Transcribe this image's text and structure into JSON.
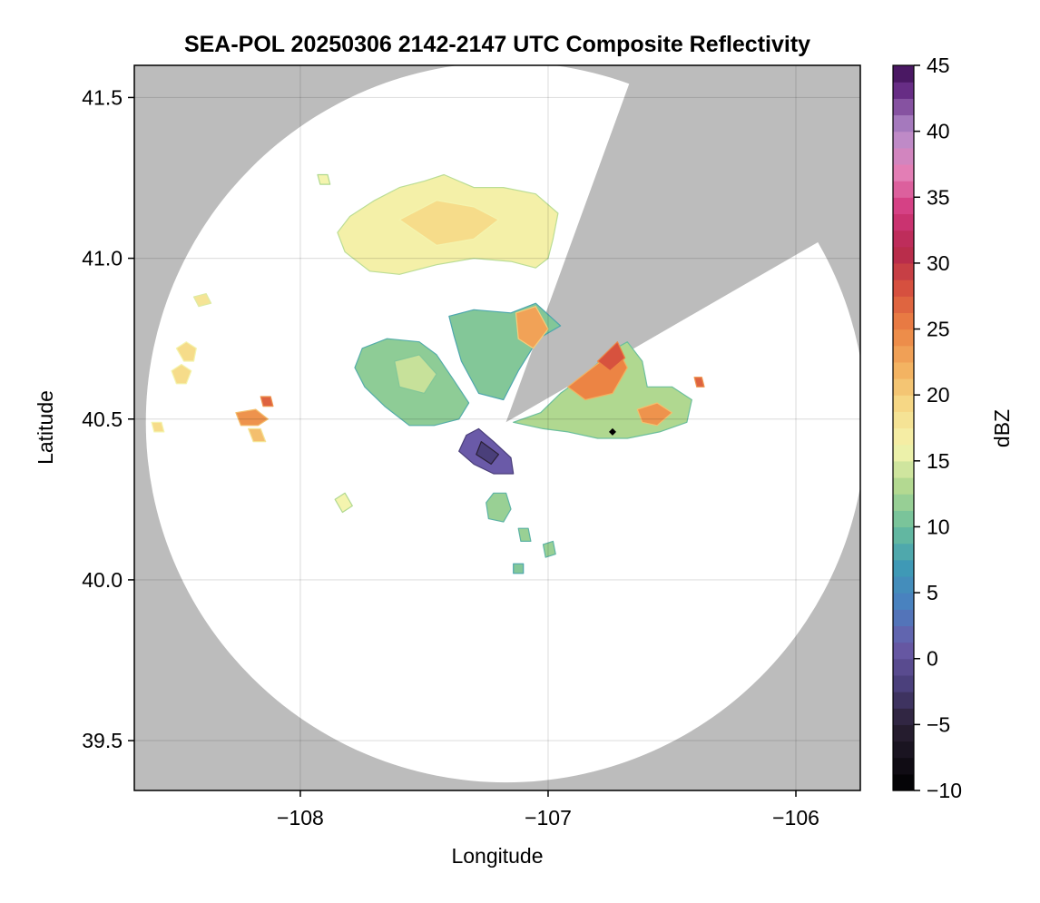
{
  "chart_data": {
    "type": "heatmap",
    "title": "SEA-POL 20250306 2142-2147 UTC Composite Reflectivity",
    "xlabel": "Longitude",
    "ylabel": "Latitude",
    "xlim": [
      -108.67,
      -105.74
    ],
    "ylim": [
      39.345,
      41.6
    ],
    "x_ticks": [
      {
        "value": -108,
        "label": "−108"
      },
      {
        "value": -107,
        "label": "−107"
      },
      {
        "value": -106,
        "label": "−106"
      }
    ],
    "y_ticks": [
      {
        "value": 39.5,
        "label": "39.5"
      },
      {
        "value": 40.0,
        "label": "40.0"
      },
      {
        "value": 40.5,
        "label": "40.5"
      },
      {
        "value": 41.0,
        "label": "41.0"
      },
      {
        "value": 41.5,
        "label": "41.5"
      }
    ],
    "grid": true,
    "background_color": "#bcbcbc",
    "radar_site": {
      "lon": -107.17,
      "lat": 40.49
    },
    "coverage_radius_deg_lat": 1.12,
    "blocked_sectors_deg": [
      [
        20,
        60
      ]
    ],
    "colorbar": {
      "label": "dBZ",
      "min": -10,
      "max": 45,
      "ticks": [
        {
          "value": -10,
          "label": "−10"
        },
        {
          "value": -5,
          "label": "−5"
        },
        {
          "value": 0,
          "label": "0"
        },
        {
          "value": 5,
          "label": "5"
        },
        {
          "value": 10,
          "label": "10"
        },
        {
          "value": 15,
          "label": "15"
        },
        {
          "value": 20,
          "label": "20"
        },
        {
          "value": 25,
          "label": "25"
        },
        {
          "value": 30,
          "label": "30"
        },
        {
          "value": 35,
          "label": "35"
        },
        {
          "value": 40,
          "label": "40"
        },
        {
          "value": 45,
          "label": "45"
        }
      ],
      "colormap_stops": [
        {
          "v": -10,
          "c": "#000000"
        },
        {
          "v": -5,
          "c": "#2a2035"
        },
        {
          "v": -2,
          "c": "#4a3f7a"
        },
        {
          "v": 1,
          "c": "#6a5aa8"
        },
        {
          "v": 4,
          "c": "#4a7ec0"
        },
        {
          "v": 7,
          "c": "#3e9ab6"
        },
        {
          "v": 10,
          "c": "#6cbf9c"
        },
        {
          "v": 13,
          "c": "#b0d890"
        },
        {
          "v": 16,
          "c": "#f4f4ae"
        },
        {
          "v": 19,
          "c": "#f6dc8a"
        },
        {
          "v": 22,
          "c": "#f3b160"
        },
        {
          "v": 25,
          "c": "#ec8444"
        },
        {
          "v": 28,
          "c": "#d7523e"
        },
        {
          "v": 31,
          "c": "#b5284d"
        },
        {
          "v": 34,
          "c": "#d3387e"
        },
        {
          "v": 37,
          "c": "#e481b7"
        },
        {
          "v": 40,
          "c": "#b58ccb"
        },
        {
          "v": 43,
          "c": "#6a2f88"
        },
        {
          "v": 45,
          "c": "#3b0d52"
        }
      ]
    },
    "echo_regions": [
      {
        "name": "northern band",
        "points": [
          [
            -107.82,
            41.02
          ],
          [
            -107.85,
            41.08
          ],
          [
            -107.8,
            41.13
          ],
          [
            -107.7,
            41.18
          ],
          [
            -107.6,
            41.22
          ],
          [
            -107.5,
            41.24
          ],
          [
            -107.42,
            41.26
          ],
          [
            -107.3,
            41.22
          ],
          [
            -107.18,
            41.22
          ],
          [
            -107.05,
            41.2
          ],
          [
            -106.96,
            41.14
          ],
          [
            -106.98,
            41.06
          ],
          [
            -107.0,
            41.0
          ],
          [
            -107.05,
            40.97
          ],
          [
            -107.15,
            40.99
          ],
          [
            -107.3,
            41.0
          ],
          [
            -107.45,
            40.98
          ],
          [
            -107.6,
            40.95
          ],
          [
            -107.72,
            40.96
          ]
        ],
        "dbz": 16.5
      },
      {
        "name": "northern band core",
        "points": [
          [
            -107.6,
            41.12
          ],
          [
            -107.45,
            41.18
          ],
          [
            -107.3,
            41.16
          ],
          [
            -107.2,
            41.12
          ],
          [
            -107.3,
            41.06
          ],
          [
            -107.45,
            41.04
          ]
        ],
        "dbz": 19
      },
      {
        "name": "west central",
        "points": [
          [
            -107.78,
            40.66
          ],
          [
            -107.75,
            40.72
          ],
          [
            -107.65,
            40.75
          ],
          [
            -107.52,
            40.74
          ],
          [
            -107.45,
            40.7
          ],
          [
            -107.38,
            40.62
          ],
          [
            -107.32,
            40.55
          ],
          [
            -107.36,
            40.5
          ],
          [
            -107.46,
            40.48
          ],
          [
            -107.56,
            40.48
          ],
          [
            -107.66,
            40.54
          ],
          [
            -107.74,
            40.6
          ]
        ],
        "dbz": 11.5
      },
      {
        "name": "west central core",
        "points": [
          [
            -107.62,
            40.68
          ],
          [
            -107.52,
            40.7
          ],
          [
            -107.45,
            40.64
          ],
          [
            -107.5,
            40.58
          ],
          [
            -107.6,
            40.6
          ]
        ],
        "dbz": 14
      },
      {
        "name": "north central",
        "points": [
          [
            -107.4,
            40.82
          ],
          [
            -107.3,
            40.84
          ],
          [
            -107.15,
            40.83
          ],
          [
            -107.05,
            40.86
          ],
          [
            -106.95,
            40.79
          ],
          [
            -107.04,
            40.75
          ],
          [
            -107.12,
            40.65
          ],
          [
            -107.18,
            40.56
          ],
          [
            -107.28,
            40.58
          ],
          [
            -107.35,
            40.68
          ],
          [
            -107.38,
            40.76
          ]
        ],
        "dbz": 11
      },
      {
        "name": "north central core",
        "points": [
          [
            -107.13,
            40.83
          ],
          [
            -107.05,
            40.85
          ],
          [
            -107.0,
            40.78
          ],
          [
            -107.06,
            40.72
          ],
          [
            -107.12,
            40.75
          ]
        ],
        "dbz": 23
      },
      {
        "name": "southern arm",
        "points": [
          [
            -107.28,
            40.47
          ],
          [
            -107.22,
            40.43
          ],
          [
            -107.15,
            40.38
          ],
          [
            -107.14,
            40.33
          ],
          [
            -107.22,
            40.33
          ],
          [
            -107.3,
            40.36
          ],
          [
            -107.36,
            40.4
          ],
          [
            -107.33,
            40.45
          ]
        ],
        "dbz": 1
      },
      {
        "name": "southern arm core",
        "points": [
          [
            -107.27,
            40.43
          ],
          [
            -107.2,
            40.39
          ],
          [
            -107.23,
            40.36
          ],
          [
            -107.29,
            40.39
          ]
        ],
        "dbz": -2
      },
      {
        "name": "east cell",
        "points": [
          [
            -107.14,
            40.49
          ],
          [
            -107.03,
            40.52
          ],
          [
            -106.95,
            40.58
          ],
          [
            -106.86,
            40.63
          ],
          [
            -106.75,
            40.71
          ],
          [
            -106.68,
            40.74
          ],
          [
            -106.62,
            40.68
          ],
          [
            -106.6,
            40.6
          ],
          [
            -106.5,
            40.6
          ],
          [
            -106.42,
            40.56
          ],
          [
            -106.44,
            40.49
          ],
          [
            -106.55,
            40.46
          ],
          [
            -106.68,
            40.44
          ],
          [
            -106.8,
            40.44
          ],
          [
            -106.92,
            40.46
          ],
          [
            -107.02,
            40.47
          ]
        ],
        "dbz": 13
      },
      {
        "name": "east cell core",
        "points": [
          [
            -106.92,
            40.6
          ],
          [
            -106.82,
            40.66
          ],
          [
            -106.72,
            40.72
          ],
          [
            -106.68,
            40.66
          ],
          [
            -106.74,
            40.58
          ],
          [
            -106.85,
            40.56
          ]
        ],
        "dbz": 25
      },
      {
        "name": "east cell inner",
        "points": [
          [
            -106.8,
            40.68
          ],
          [
            -106.72,
            40.74
          ],
          [
            -106.69,
            40.69
          ],
          [
            -106.75,
            40.65
          ]
        ],
        "dbz": 28
      },
      {
        "name": "east cell south core",
        "points": [
          [
            -106.64,
            40.53
          ],
          [
            -106.56,
            40.55
          ],
          [
            -106.5,
            40.52
          ],
          [
            -106.56,
            40.48
          ],
          [
            -106.62,
            40.49
          ]
        ],
        "dbz": 24
      },
      {
        "name": "south cell",
        "points": [
          [
            -107.25,
            40.24
          ],
          [
            -107.22,
            40.27
          ],
          [
            -107.17,
            40.27
          ],
          [
            -107.15,
            40.22
          ],
          [
            -107.18,
            40.18
          ],
          [
            -107.24,
            40.19
          ]
        ],
        "dbz": 12
      },
      {
        "name": "small west 1",
        "points": [
          [
            -108.5,
            40.72
          ],
          [
            -108.46,
            40.74
          ],
          [
            -108.42,
            40.72
          ],
          [
            -108.43,
            40.68
          ],
          [
            -108.47,
            40.68
          ]
        ],
        "dbz": 19
      },
      {
        "name": "small west 2",
        "points": [
          [
            -108.52,
            40.65
          ],
          [
            -108.48,
            40.67
          ],
          [
            -108.44,
            40.65
          ],
          [
            -108.46,
            40.61
          ],
          [
            -108.5,
            40.61
          ]
        ],
        "dbz": 19
      },
      {
        "name": "small west 3",
        "points": [
          [
            -108.26,
            40.52
          ],
          [
            -108.18,
            40.53
          ],
          [
            -108.13,
            40.5
          ],
          [
            -108.17,
            40.48
          ],
          [
            -108.24,
            40.48
          ]
        ],
        "dbz": 24
      },
      {
        "name": "small west 4",
        "points": [
          [
            -108.21,
            40.47
          ],
          [
            -108.16,
            40.47
          ],
          [
            -108.14,
            40.43
          ],
          [
            -108.19,
            40.43
          ]
        ],
        "dbz": 21
      },
      {
        "name": "small west 5",
        "points": [
          [
            -108.43,
            40.88
          ],
          [
            -108.38,
            40.89
          ],
          [
            -108.36,
            40.86
          ],
          [
            -108.41,
            40.85
          ]
        ],
        "dbz": 18
      },
      {
        "name": "small west 6",
        "points": [
          [
            -108.6,
            40.49
          ],
          [
            -108.56,
            40.49
          ],
          [
            -108.55,
            40.46
          ],
          [
            -108.59,
            40.46
          ]
        ],
        "dbz": 19
      },
      {
        "name": "small west 7",
        "points": [
          [
            -108.16,
            40.57
          ],
          [
            -108.12,
            40.57
          ],
          [
            -108.11,
            40.54
          ],
          [
            -108.15,
            40.54
          ]
        ],
        "dbz": 27
      },
      {
        "name": "small west 8",
        "points": [
          [
            -107.86,
            40.25
          ],
          [
            -107.82,
            40.27
          ],
          [
            -107.79,
            40.23
          ],
          [
            -107.83,
            40.21
          ]
        ],
        "dbz": 16
      },
      {
        "name": "small far east",
        "points": [
          [
            -106.41,
            40.63
          ],
          [
            -106.38,
            40.63
          ],
          [
            -106.37,
            40.6
          ],
          [
            -106.4,
            40.6
          ]
        ],
        "dbz": 27
      },
      {
        "name": "small north",
        "points": [
          [
            -107.93,
            41.26
          ],
          [
            -107.89,
            41.26
          ],
          [
            -107.88,
            41.23
          ],
          [
            -107.92,
            41.23
          ]
        ],
        "dbz": 16
      },
      {
        "name": "small south 1",
        "points": [
          [
            -107.12,
            40.16
          ],
          [
            -107.08,
            40.16
          ],
          [
            -107.07,
            40.12
          ],
          [
            -107.11,
            40.12
          ]
        ],
        "dbz": 12
      },
      {
        "name": "small south 2",
        "points": [
          [
            -107.02,
            40.11
          ],
          [
            -106.98,
            40.12
          ],
          [
            -106.97,
            40.08
          ],
          [
            -107.01,
            40.07
          ]
        ],
        "dbz": 12
      },
      {
        "name": "small south 3",
        "points": [
          [
            -107.14,
            40.05
          ],
          [
            -107.1,
            40.05
          ],
          [
            -107.1,
            40.02
          ],
          [
            -107.14,
            40.02
          ]
        ],
        "dbz": 11
      }
    ],
    "markers": [
      {
        "lon": -106.74,
        "lat": 40.46,
        "shape": "diamond",
        "color": "#000000"
      }
    ]
  }
}
